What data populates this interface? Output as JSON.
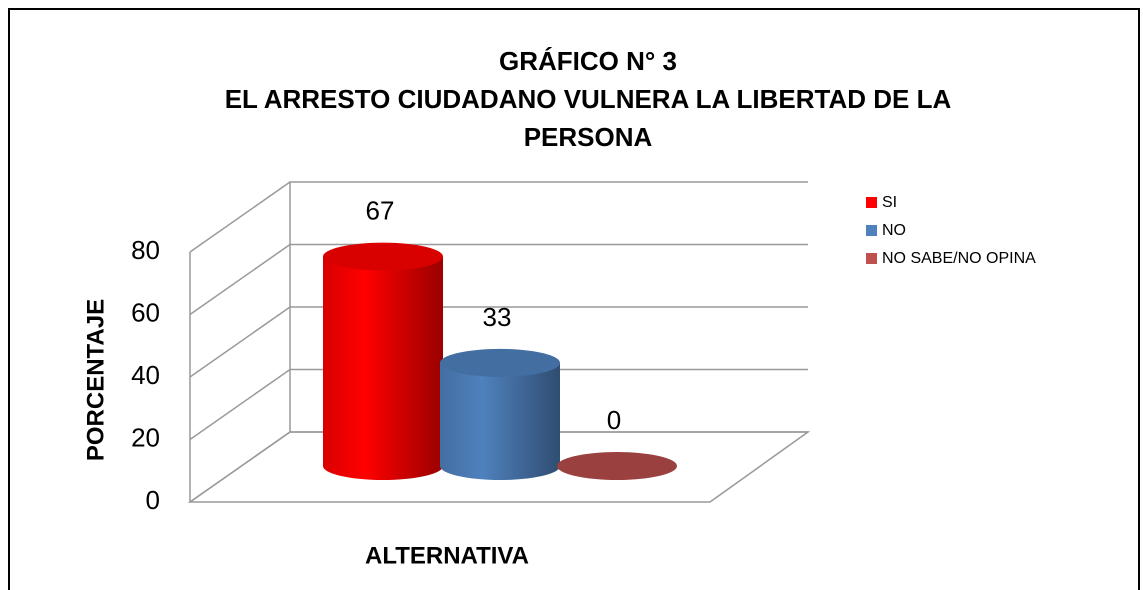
{
  "chart_data": {
    "type": "bar3d",
    "title": "GRÁFICO N° 3",
    "subtitle": "EL ARRESTO CIUDADANO VULNERA LA LIBERTAD DE LA PERSONA",
    "x_label": "ALTERNATIVA",
    "y_label": "PORCENTAJE",
    "categories": [
      null
    ],
    "series": [
      {
        "name": "SI",
        "color": "#ff0000",
        "values": [
          67
        ]
      },
      {
        "name": "NO",
        "color": "#4f81bd",
        "values": [
          33
        ]
      },
      {
        "name": "NO SABE/NO OPINA",
        "color": "#c0504d",
        "values": [
          0
        ]
      }
    ],
    "ylim": [
      0,
      80
    ],
    "yticks": [
      0,
      20,
      40,
      60,
      80
    ],
    "grid": true,
    "legend": "right"
  }
}
